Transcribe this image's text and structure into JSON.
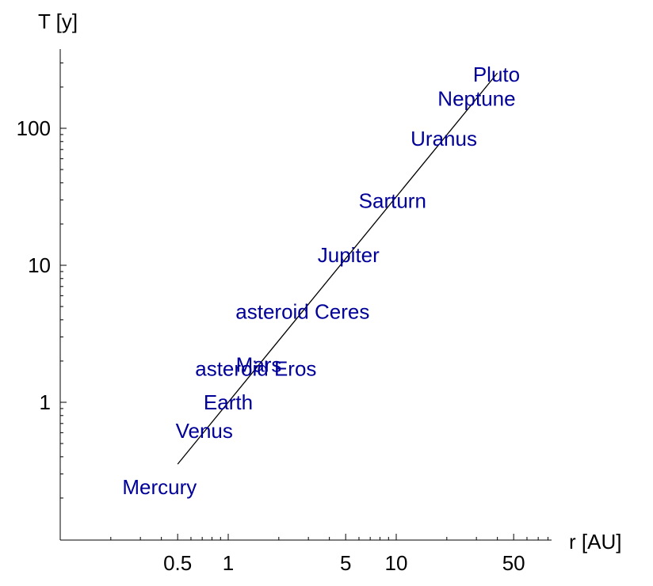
{
  "chart_data": {
    "type": "scatter",
    "xlabel": "r [AU]",
    "ylabel": "T [y]",
    "xscale": "log",
    "yscale": "log",
    "xlim": [
      0.1,
      80
    ],
    "ylim": [
      0.1,
      350
    ],
    "x_ticks": [
      {
        "value": 0.5,
        "label": "0.5"
      },
      {
        "value": 1,
        "label": "1"
      },
      {
        "value": 5,
        "label": "5"
      },
      {
        "value": 10,
        "label": "10"
      },
      {
        "value": 50,
        "label": "50"
      }
    ],
    "y_ticks": [
      {
        "value": 1,
        "label": "1"
      },
      {
        "value": 10,
        "label": "10"
      },
      {
        "value": 100,
        "label": "100"
      }
    ],
    "points": [
      {
        "label": "Mercury",
        "x": 0.39,
        "y": 0.24
      },
      {
        "label": "Venus",
        "x": 0.72,
        "y": 0.62
      },
      {
        "label": "Earth",
        "x": 1.0,
        "y": 1.0
      },
      {
        "label": "asteroid Eros",
        "x": 1.46,
        "y": 1.76
      },
      {
        "label": "Mars",
        "x": 1.52,
        "y": 1.88
      },
      {
        "label": "asteroid Ceres",
        "x": 2.77,
        "y": 4.6
      },
      {
        "label": "Jupiter",
        "x": 5.2,
        "y": 11.9
      },
      {
        "label": "Sarturn",
        "x": 9.5,
        "y": 29.5
      },
      {
        "label": "Uranus",
        "x": 19.2,
        "y": 84
      },
      {
        "label": "Neptune",
        "x": 30.1,
        "y": 165
      },
      {
        "label": "Pluto",
        "x": 39.5,
        "y": 248
      }
    ],
    "fit_line": {
      "x_start": 0.5,
      "x_end": 40
    },
    "grid": false,
    "legend": "none",
    "label_color": "#000099"
  }
}
